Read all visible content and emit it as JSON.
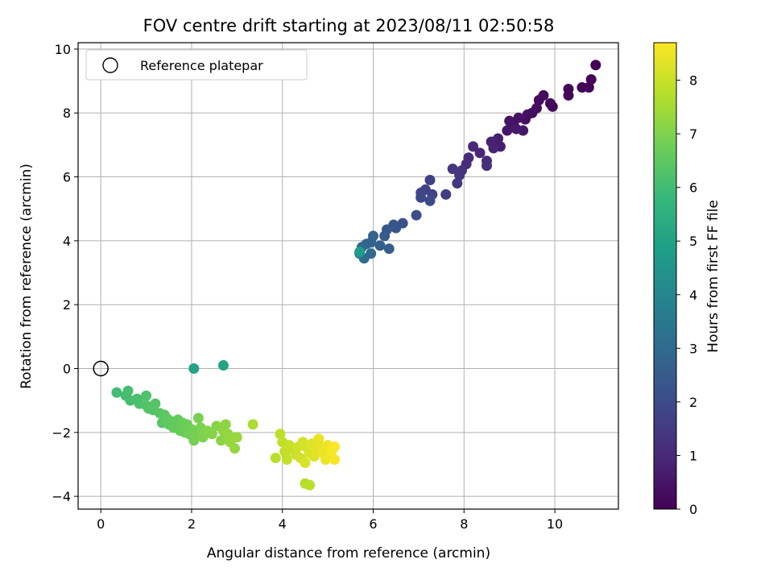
{
  "chart_data": {
    "type": "scatter",
    "title": "FOV centre drift starting at 2023/08/11 02:50:58",
    "xlabel": "Angular distance from reference (arcmin)",
    "ylabel": "Rotation from reference (arcmin)",
    "xlim": [
      -0.5,
      11.4
    ],
    "ylim": [
      -4.4,
      10.2
    ],
    "xticks": [
      "0",
      "2",
      "4",
      "6",
      "8",
      "10"
    ],
    "yticks": [
      "−4",
      "−2",
      "0",
      "2",
      "4",
      "6",
      "8",
      "10"
    ],
    "grid": true,
    "legend": {
      "placement": "upper-left",
      "entries": [
        "Reference platepar"
      ]
    },
    "reference_point": {
      "x": 0,
      "y": 0
    },
    "colorbar": {
      "label": "Hours from first FF file",
      "range": [
        0,
        8.7
      ],
      "ticks": [
        "0",
        "1",
        "2",
        "3",
        "4",
        "5",
        "6",
        "7",
        "8"
      ],
      "colormap": [
        "#440154",
        "#482878",
        "#3e4989",
        "#31688e",
        "#26828e",
        "#1f9e89",
        "#35b779",
        "#6ece58",
        "#b5de2b",
        "#fde725"
      ]
    },
    "points": [
      [
        10.9,
        9.5,
        0.0
      ],
      [
        10.8,
        9.05,
        0.05
      ],
      [
        10.75,
        8.8,
        0.08
      ],
      [
        10.6,
        8.8,
        0.1
      ],
      [
        10.3,
        8.75,
        0.12
      ],
      [
        10.3,
        8.55,
        0.15
      ],
      [
        9.95,
        8.2,
        0.2
      ],
      [
        9.9,
        8.3,
        0.22
      ],
      [
        9.75,
        8.55,
        0.25
      ],
      [
        9.65,
        8.4,
        0.28
      ],
      [
        9.6,
        8.15,
        0.3
      ],
      [
        9.5,
        8.0,
        0.32
      ],
      [
        9.4,
        7.95,
        0.35
      ],
      [
        9.35,
        7.8,
        0.38
      ],
      [
        9.2,
        7.85,
        0.4
      ],
      [
        9.1,
        7.6,
        0.42
      ],
      [
        9.0,
        7.75,
        0.45
      ],
      [
        8.95,
        7.45,
        0.5
      ],
      [
        9.3,
        7.45,
        0.55
      ],
      [
        9.15,
        7.5,
        0.6
      ],
      [
        8.8,
        6.95,
        0.7
      ],
      [
        8.75,
        7.2,
        0.75
      ],
      [
        8.6,
        7.1,
        0.8
      ],
      [
        8.65,
        6.9,
        0.85
      ],
      [
        8.35,
        6.75,
        0.95
      ],
      [
        8.2,
        6.95,
        1.0
      ],
      [
        8.1,
        6.6,
        1.05
      ],
      [
        8.05,
        6.4,
        1.1
      ],
      [
        8.5,
        6.5,
        1.15
      ],
      [
        8.5,
        6.35,
        1.2
      ],
      [
        7.95,
        6.2,
        1.3
      ],
      [
        7.9,
        6.05,
        1.35
      ],
      [
        7.75,
        6.25,
        1.4
      ],
      [
        7.85,
        5.8,
        1.45
      ],
      [
        7.6,
        5.45,
        1.6
      ],
      [
        7.25,
        5.9,
        1.7
      ],
      [
        7.3,
        5.45,
        1.75
      ],
      [
        7.15,
        5.6,
        1.8
      ],
      [
        7.05,
        5.5,
        1.85
      ],
      [
        7.05,
        5.35,
        1.9
      ],
      [
        7.25,
        5.25,
        1.95
      ],
      [
        6.95,
        4.8,
        2.1
      ],
      [
        6.65,
        4.55,
        2.2
      ],
      [
        6.45,
        4.5,
        2.3
      ],
      [
        6.5,
        4.4,
        2.35
      ],
      [
        6.3,
        4.35,
        2.4
      ],
      [
        6.25,
        4.15,
        2.5
      ],
      [
        6.35,
        3.75,
        2.55
      ],
      [
        6.15,
        3.85,
        2.6
      ],
      [
        6.0,
        4.15,
        2.7
      ],
      [
        5.95,
        3.95,
        2.75
      ],
      [
        5.85,
        3.9,
        2.8
      ],
      [
        5.95,
        3.6,
        2.9
      ],
      [
        5.75,
        3.8,
        3.0
      ],
      [
        5.8,
        3.45,
        3.1
      ],
      [
        5.7,
        3.6,
        3.3
      ],
      [
        5.7,
        3.65,
        4.8
      ],
      [
        2.05,
        0.0,
        5.0
      ],
      [
        2.7,
        0.1,
        5.0
      ],
      [
        0.35,
        -0.75,
        6.0
      ],
      [
        0.55,
        -0.85,
        6.05
      ],
      [
        0.6,
        -0.7,
        6.1
      ],
      [
        0.65,
        -1.0,
        6.1
      ],
      [
        0.8,
        -0.95,
        6.15
      ],
      [
        0.85,
        -1.1,
        6.2
      ],
      [
        1.0,
        -0.85,
        6.2
      ],
      [
        1.0,
        -1.15,
        6.25
      ],
      [
        1.05,
        -1.25,
        6.3
      ],
      [
        1.15,
        -1.3,
        6.3
      ],
      [
        1.2,
        -1.1,
        6.35
      ],
      [
        1.3,
        -1.4,
        6.4
      ],
      [
        1.35,
        -1.7,
        6.4
      ],
      [
        1.4,
        -1.45,
        6.45
      ],
      [
        1.45,
        -1.55,
        6.5
      ],
      [
        1.5,
        -1.75,
        6.5
      ],
      [
        1.55,
        -1.65,
        6.55
      ],
      [
        1.6,
        -1.85,
        6.6
      ],
      [
        1.7,
        -1.6,
        6.6
      ],
      [
        1.75,
        -1.95,
        6.65
      ],
      [
        1.8,
        -1.7,
        6.7
      ],
      [
        1.85,
        -2.0,
        6.7
      ],
      [
        1.9,
        -1.75,
        6.75
      ],
      [
        1.95,
        -2.05,
        6.8
      ],
      [
        2.0,
        -1.9,
        6.8
      ],
      [
        2.05,
        -2.25,
        6.85
      ],
      [
        2.1,
        -2.1,
        6.9
      ],
      [
        2.15,
        -1.55,
        6.9
      ],
      [
        2.2,
        -1.85,
        6.95
      ],
      [
        2.25,
        -2.15,
        7.0
      ],
      [
        2.3,
        -2.0,
        7.0
      ],
      [
        2.35,
        -1.95,
        7.05
      ],
      [
        2.45,
        -2.05,
        7.1
      ],
      [
        2.55,
        -1.8,
        7.1
      ],
      [
        2.65,
        -2.25,
        7.15
      ],
      [
        2.7,
        -1.95,
        7.2
      ],
      [
        2.75,
        -1.75,
        7.2
      ],
      [
        2.8,
        -2.05,
        7.25
      ],
      [
        2.85,
        -2.3,
        7.3
      ],
      [
        2.95,
        -2.5,
        7.3
      ],
      [
        3.0,
        -2.15,
        7.35
      ],
      [
        3.35,
        -1.75,
        7.6
      ],
      [
        3.85,
        -2.8,
        7.8
      ],
      [
        3.95,
        -2.05,
        7.85
      ],
      [
        4.0,
        -2.3,
        7.9
      ],
      [
        4.05,
        -2.6,
        7.9
      ],
      [
        4.1,
        -2.85,
        7.95
      ],
      [
        4.15,
        -2.4,
        8.0
      ],
      [
        4.2,
        -2.55,
        8.0
      ],
      [
        4.3,
        -2.7,
        8.05
      ],
      [
        4.35,
        -2.45,
        8.1
      ],
      [
        4.4,
        -2.8,
        8.1
      ],
      [
        4.45,
        -2.3,
        8.15
      ],
      [
        4.5,
        -2.95,
        8.2
      ],
      [
        4.55,
        -2.5,
        8.2
      ],
      [
        4.6,
        -2.65,
        8.25
      ],
      [
        4.65,
        -2.35,
        8.3
      ],
      [
        4.7,
        -2.75,
        8.3
      ],
      [
        4.75,
        -2.55,
        8.35
      ],
      [
        4.8,
        -2.2,
        8.4
      ],
      [
        4.85,
        -2.45,
        8.4
      ],
      [
        4.9,
        -2.65,
        8.45
      ],
      [
        4.95,
        -2.85,
        8.5
      ],
      [
        5.0,
        -2.4,
        8.5
      ],
      [
        5.05,
        -2.7,
        8.55
      ],
      [
        5.1,
        -2.55,
        8.6
      ],
      [
        5.15,
        -2.85,
        8.6
      ],
      [
        5.15,
        -2.45,
        8.65
      ],
      [
        4.5,
        -3.6,
        7.75
      ],
      [
        4.6,
        -3.65,
        7.8
      ]
    ]
  }
}
